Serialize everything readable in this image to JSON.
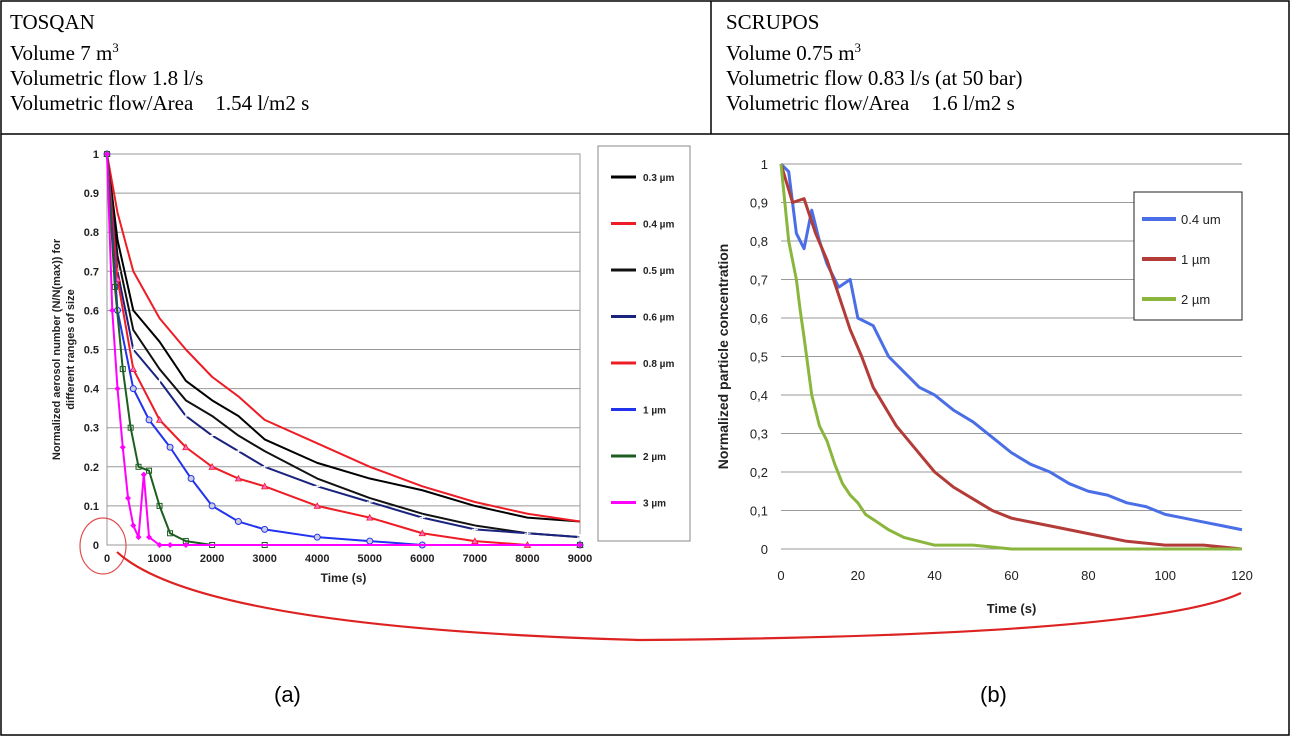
{
  "table": {
    "left": {
      "name": "TOSQAN",
      "volume": "Volume 7 m",
      "volume_sup": "3",
      "flow": "Volumetric flow 1.8 l/s",
      "flow_area_label": "Volumetric flow/Area",
      "flow_area_value": "1.54 l/m2 s"
    },
    "right": {
      "name": "SCRUPOS",
      "volume": "Volume 0.75 m",
      "volume_sup": "3",
      "flow": "Volumetric flow 0.83 l/s (at 50 bar)",
      "flow_area_label": "Volumetric flow/Area",
      "flow_area_value": "1.6 l/m2 s"
    }
  },
  "captions": {
    "a": "(a)",
    "b": "(b)"
  },
  "chart_data": [
    {
      "type": "line",
      "xlabel": "Time (s)",
      "ylabel": "Normalized aerosol number (N/N(max)) for different ranges of size",
      "xlim": [
        0,
        9000
      ],
      "ylim": [
        0,
        1
      ],
      "xticks": [
        0,
        1000,
        2000,
        3000,
        4000,
        5000,
        6000,
        7000,
        8000,
        9000
      ],
      "yticks": [
        0,
        0.1,
        0.2,
        0.3,
        0.4,
        0.5,
        0.6,
        0.7,
        0.8,
        0.9,
        1
      ],
      "grid": true,
      "legend": "right",
      "series": [
        {
          "name": "0.3 µm",
          "color": "#000000",
          "marker": "none",
          "x": [
            0,
            200,
            500,
            1000,
            1500,
            2000,
            2500,
            3000,
            4000,
            5000,
            6000,
            7000,
            8000,
            9000
          ],
          "y": [
            1,
            0.78,
            0.6,
            0.52,
            0.42,
            0.37,
            0.33,
            0.27,
            0.21,
            0.17,
            0.14,
            0.1,
            0.07,
            0.06
          ]
        },
        {
          "name": "0.4 µm",
          "color": "#ee1c25",
          "marker": "none",
          "x": [
            0,
            200,
            500,
            1000,
            1500,
            2000,
            2500,
            3000,
            4000,
            5000,
            6000,
            7000,
            8000,
            9000
          ],
          "y": [
            1,
            0.85,
            0.7,
            0.58,
            0.5,
            0.43,
            0.38,
            0.32,
            0.26,
            0.2,
            0.15,
            0.11,
            0.08,
            0.06
          ]
        },
        {
          "name": "0.5 µm",
          "color": "#111111",
          "marker": "none",
          "x": [
            0,
            200,
            500,
            1000,
            1500,
            2000,
            2500,
            3000,
            4000,
            5000,
            6000,
            7000,
            8000,
            9000
          ],
          "y": [
            1,
            0.74,
            0.55,
            0.45,
            0.37,
            0.33,
            0.28,
            0.24,
            0.17,
            0.12,
            0.08,
            0.05,
            0.03,
            0.02
          ]
        },
        {
          "name": "0.6 µm",
          "color": "#1a237e",
          "marker": "cross",
          "x": [
            0,
            200,
            500,
            1000,
            1500,
            2000,
            2500,
            3000,
            4000,
            5000,
            6000,
            7000,
            8000,
            9000
          ],
          "y": [
            1,
            0.7,
            0.5,
            0.42,
            0.33,
            0.28,
            0.24,
            0.2,
            0.15,
            0.11,
            0.07,
            0.04,
            0.03,
            0.02
          ]
        },
        {
          "name": "0.8 µm",
          "color": "#ee1c25",
          "marker": "triangle",
          "x": [
            0,
            200,
            500,
            1000,
            1500,
            2000,
            2500,
            3000,
            4000,
            5000,
            6000,
            7000,
            8000,
            9000
          ],
          "y": [
            1,
            0.68,
            0.45,
            0.32,
            0.25,
            0.2,
            0.17,
            0.15,
            0.1,
            0.07,
            0.03,
            0.01,
            0,
            0
          ]
        },
        {
          "name": "1 µm",
          "color": "#2233ee",
          "marker": "circle",
          "x": [
            0,
            200,
            500,
            800,
            1200,
            1600,
            2000,
            2500,
            3000,
            4000,
            5000,
            6000,
            9000
          ],
          "y": [
            1,
            0.6,
            0.4,
            0.32,
            0.25,
            0.17,
            0.1,
            0.06,
            0.04,
            0.02,
            0.01,
            0,
            0
          ]
        },
        {
          "name": "2 µm",
          "color": "#1b5e20",
          "marker": "square",
          "x": [
            0,
            150,
            300,
            450,
            600,
            800,
            1000,
            1200,
            1500,
            2000,
            3000,
            9000
          ],
          "y": [
            1,
            0.66,
            0.45,
            0.3,
            0.2,
            0.19,
            0.1,
            0.03,
            0.01,
            0,
            0,
            0
          ]
        },
        {
          "name": "3 µm",
          "color": "#ff00ff",
          "marker": "diamond",
          "x": [
            0,
            100,
            200,
            300,
            400,
            500,
            600,
            700,
            800,
            1000,
            1200,
            1500,
            9000
          ],
          "y": [
            1,
            0.6,
            0.4,
            0.25,
            0.12,
            0.05,
            0.02,
            0.18,
            0.02,
            0,
            0,
            0,
            0
          ]
        }
      ]
    },
    {
      "type": "line",
      "xlabel": "Time (s)",
      "ylabel": "Normalized particle concentration",
      "xlim": [
        0,
        120
      ],
      "ylim": [
        0,
        1
      ],
      "xticks": [
        0,
        20,
        40,
        60,
        80,
        100,
        120
      ],
      "yticks": [
        "0",
        "0,1",
        "0,2",
        "0,3",
        "0,4",
        "0,5",
        "0,6",
        "0,7",
        "0,8",
        "0,9",
        "1"
      ],
      "grid": true,
      "legend": "top-right",
      "series": [
        {
          "name": "0.4   um",
          "color": "#4a6ee6",
          "x": [
            0,
            2,
            4,
            6,
            8,
            10,
            12,
            15,
            18,
            20,
            24,
            28,
            32,
            36,
            40,
            45,
            50,
            55,
            60,
            65,
            70,
            75,
            80,
            85,
            90,
            95,
            100,
            105,
            110,
            115,
            120
          ],
          "y": [
            1,
            0.98,
            0.82,
            0.78,
            0.88,
            0.8,
            0.74,
            0.68,
            0.7,
            0.6,
            0.58,
            0.5,
            0.46,
            0.42,
            0.4,
            0.36,
            0.33,
            0.29,
            0.25,
            0.22,
            0.2,
            0.17,
            0.15,
            0.14,
            0.12,
            0.11,
            0.09,
            0.08,
            0.07,
            0.06,
            0.05
          ]
        },
        {
          "name": "1 µm",
          "color": "#b33b38",
          "x": [
            0,
            3,
            6,
            9,
            12,
            15,
            18,
            21,
            24,
            27,
            30,
            35,
            40,
            45,
            50,
            55,
            60,
            70,
            80,
            90,
            100,
            110,
            120
          ],
          "y": [
            1,
            0.9,
            0.91,
            0.82,
            0.75,
            0.66,
            0.57,
            0.5,
            0.42,
            0.37,
            0.32,
            0.26,
            0.2,
            0.16,
            0.13,
            0.1,
            0.08,
            0.06,
            0.04,
            0.02,
            0.01,
            0.01,
            0
          ]
        },
        {
          "name": "2 µm",
          "color": "#8ab63e",
          "x": [
            0,
            1,
            2,
            3,
            4,
            5,
            6,
            8,
            10,
            12,
            14,
            16,
            18,
            20,
            22,
            25,
            28,
            32,
            36,
            40,
            50,
            60,
            80,
            100,
            120
          ],
          "y": [
            1,
            0.9,
            0.8,
            0.75,
            0.7,
            0.62,
            0.55,
            0.4,
            0.32,
            0.28,
            0.22,
            0.17,
            0.14,
            0.12,
            0.09,
            0.07,
            0.05,
            0.03,
            0.02,
            0.01,
            0.01,
            0,
            0,
            0,
            0
          ]
        }
      ]
    }
  ]
}
